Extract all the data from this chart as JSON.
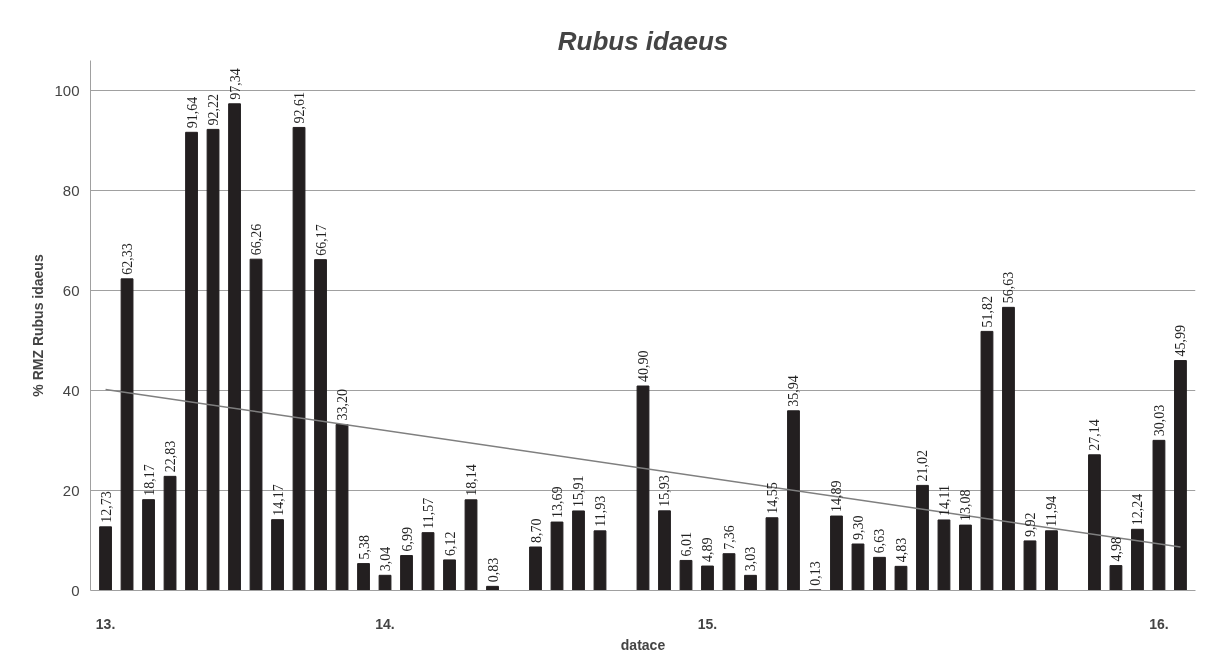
{
  "chart_data": {
    "type": "bar",
    "title": "Rubus idaeus",
    "xlabel": "datace",
    "ylabel": "% RMZ Rubus idaeus",
    "categories": [
      "13.",
      null,
      null,
      null,
      null,
      null,
      null,
      null,
      null,
      null,
      null,
      null,
      null,
      "14.",
      null,
      null,
      null,
      null,
      null,
      null,
      null,
      null,
      null,
      null,
      null,
      null,
      null,
      null,
      "15.",
      null,
      null,
      null,
      null,
      null,
      null,
      null,
      null,
      null,
      null,
      null,
      null,
      null,
      null,
      null,
      null,
      null,
      null,
      null,
      null,
      "16.",
      null
    ],
    "series": [
      {
        "color": "#231f20",
        "values": [
          12.73,
          62.33,
          18.17,
          22.83,
          91.64,
          92.22,
          97.34,
          66.26,
          14.17,
          92.61,
          66.17,
          33.2,
          5.38,
          3.04,
          6.99,
          11.57,
          6.12,
          18.14,
          0.83,
          null,
          8.7,
          13.69,
          15.91,
          11.93,
          null,
          40.9,
          15.93,
          6.01,
          4.89,
          7.36,
          3.03,
          14.55,
          35.94,
          0.13,
          14.89,
          9.3,
          6.63,
          4.83,
          21.02,
          14.11,
          13.08,
          51.82,
          56.63,
          9.92,
          11.94,
          null,
          27.14,
          4.98,
          12.24,
          30.03,
          45.99
        ],
        "value_labels": [
          "12,73",
          "62,33",
          "18,17",
          "22,83",
          "91,64",
          "92,22",
          "97,34",
          "66,26",
          "14,17",
          "92,61",
          "66,17",
          "33,20",
          "5,38",
          "3,04",
          "6,99",
          "11,57",
          "6,12",
          "18,14",
          "0,83",
          null,
          "8,70",
          "13,69",
          "15,91",
          "11,93",
          null,
          "40,90",
          "15,93",
          "6,01",
          "4,89",
          "7,36",
          "3,03",
          "14,55",
          "35,94",
          "0,13",
          "14,89",
          "9,30",
          "6,63",
          "4,83",
          "21,02",
          "14,11",
          "13,08",
          "51,82",
          "56,63",
          "9,92",
          "11,94",
          null,
          "27,14",
          "4,98",
          "12,24",
          "30,03",
          "45,99"
        ]
      },
      {
        "type": "line",
        "color": "#7f7f7f",
        "values": [
          40.2,
          null,
          null,
          null,
          null,
          null,
          null,
          null,
          null,
          null,
          null,
          null,
          null,
          null,
          null,
          null,
          null,
          null,
          null,
          null,
          null,
          null,
          null,
          null,
          null,
          null,
          null,
          null,
          null,
          null,
          null,
          null,
          null,
          null,
          null,
          null,
          null,
          null,
          null,
          null,
          null,
          null,
          null,
          null,
          null,
          null,
          null,
          null,
          null,
          null,
          8.7
        ]
      }
    ],
    "ylim": [
      0,
      106
    ],
    "yticks": [
      0,
      20,
      40,
      60,
      80,
      100
    ],
    "grid": "y"
  }
}
